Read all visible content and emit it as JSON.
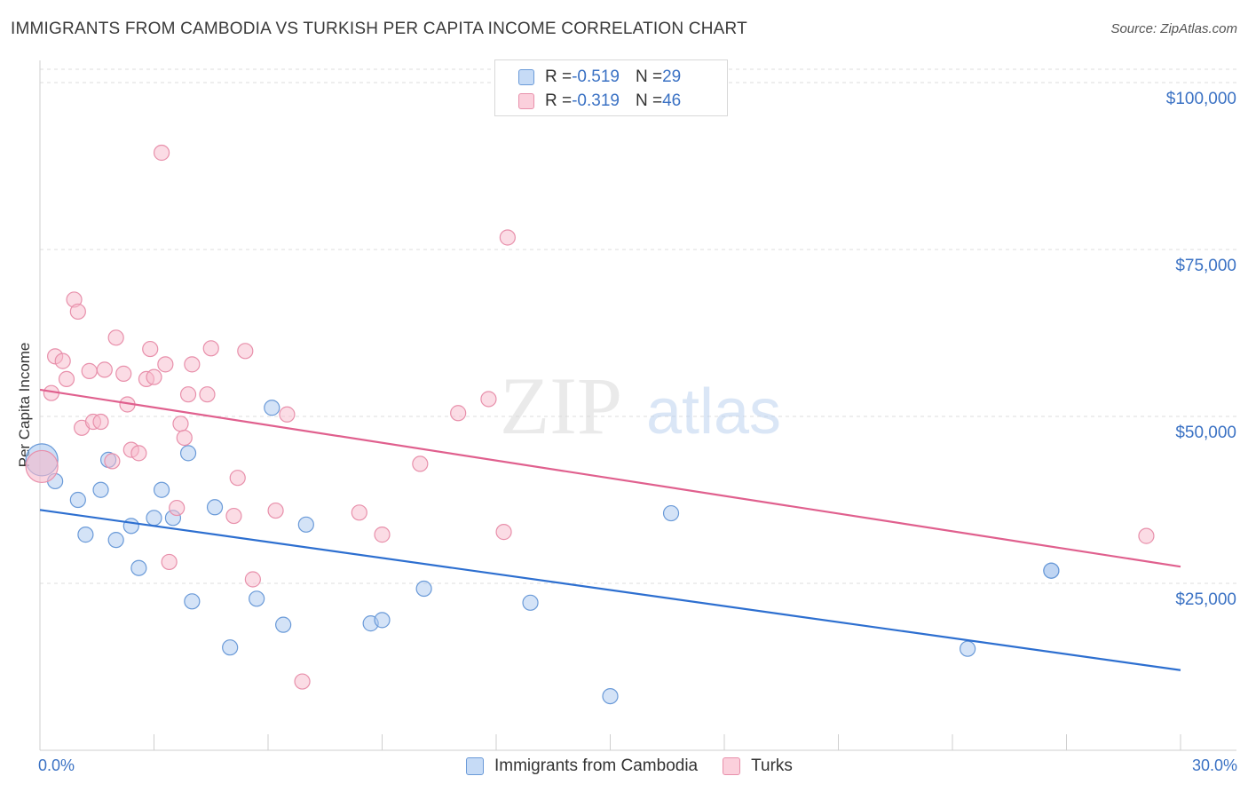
{
  "header": {
    "title": "IMMIGRANTS FROM CAMBODIA VS TURKISH PER CAPITA INCOME CORRELATION CHART",
    "source": "Source: ZipAtlas.com"
  },
  "watermark": {
    "zip": "ZIP",
    "atlas": "atlas"
  },
  "colors": {
    "cambodia_fill": "#a9c8f0",
    "cambodia_stroke": "#6a9ad8",
    "cambodia_line": "#2d6fd0",
    "turks_fill": "#f7b9cb",
    "turks_stroke": "#e890ab",
    "turks_line": "#e0608e",
    "tick_text": "#3b72c4"
  },
  "legend_top": {
    "rows": [
      {
        "r_label": "R = ",
        "r_value": "-0.519",
        "n_label": "N = ",
        "n_value": "29"
      },
      {
        "r_label": "R = ",
        "r_value": "-0.319",
        "n_label": "N = ",
        "n_value": "46"
      }
    ]
  },
  "legend_bottom": {
    "items": [
      {
        "label": "Immigrants from Cambodia"
      },
      {
        "label": "Turks"
      }
    ]
  },
  "chart_data": {
    "type": "scatter",
    "title": "IMMIGRANTS FROM CAMBODIA VS TURKISH PER CAPITA INCOME CORRELATION CHART",
    "xlabel": "",
    "ylabel": "Per Capita Income",
    "xlim": [
      0,
      30
    ],
    "ylim": [
      0,
      102000
    ],
    "x_tick_labels": [
      "0.0%",
      "30.0%"
    ],
    "y_ticks": [
      25000,
      50000,
      75000,
      100000
    ],
    "y_tick_labels": [
      "$25,000",
      "$50,000",
      "$75,000",
      "$100,000"
    ],
    "grid": true,
    "legend_position": "top-center",
    "series": [
      {
        "name": "Immigrants from Cambodia",
        "r": -0.519,
        "n": 29,
        "trend": [
          [
            0,
            36000
          ],
          [
            30,
            12000
          ]
        ],
        "points": [
          [
            0.05,
            43500
          ],
          [
            0.4,
            40300
          ],
          [
            1.0,
            37500
          ],
          [
            1.2,
            32300
          ],
          [
            1.6,
            39000
          ],
          [
            1.8,
            43500
          ],
          [
            2.0,
            31500
          ],
          [
            2.4,
            33600
          ],
          [
            2.6,
            27300
          ],
          [
            3.0,
            34800
          ],
          [
            3.2,
            39000
          ],
          [
            3.5,
            34800
          ],
          [
            3.9,
            44500
          ],
          [
            4.0,
            22300
          ],
          [
            4.6,
            36400
          ],
          [
            5.0,
            15400
          ],
          [
            5.7,
            22700
          ],
          [
            6.1,
            51300
          ],
          [
            6.4,
            18800
          ],
          [
            7.0,
            33800
          ],
          [
            8.7,
            19000
          ],
          [
            9.0,
            19500
          ],
          [
            10.1,
            24200
          ],
          [
            12.9,
            22100
          ],
          [
            15.0,
            8100
          ],
          [
            16.6,
            35500
          ],
          [
            24.4,
            15200
          ],
          [
            26.6,
            26900
          ],
          [
            26.6,
            26900
          ]
        ]
      },
      {
        "name": "Turks",
        "r": -0.319,
        "n": 46,
        "trend": [
          [
            0,
            54000
          ],
          [
            30,
            27500
          ]
        ],
        "points": [
          [
            0.05,
            42500
          ],
          [
            0.3,
            53500
          ],
          [
            0.4,
            59000
          ],
          [
            0.6,
            58300
          ],
          [
            0.7,
            55600
          ],
          [
            0.9,
            67500
          ],
          [
            1.0,
            65700
          ],
          [
            1.1,
            48300
          ],
          [
            1.3,
            56800
          ],
          [
            1.4,
            49200
          ],
          [
            1.6,
            49200
          ],
          [
            1.7,
            57000
          ],
          [
            1.9,
            43300
          ],
          [
            2.0,
            61800
          ],
          [
            2.2,
            56400
          ],
          [
            2.3,
            51800
          ],
          [
            2.4,
            45000
          ],
          [
            2.6,
            44500
          ],
          [
            2.8,
            55600
          ],
          [
            2.9,
            60100
          ],
          [
            3.0,
            55900
          ],
          [
            3.2,
            89500
          ],
          [
            3.3,
            57800
          ],
          [
            3.4,
            28200
          ],
          [
            3.6,
            36300
          ],
          [
            3.7,
            48900
          ],
          [
            3.8,
            46800
          ],
          [
            3.9,
            53300
          ],
          [
            4.0,
            57800
          ],
          [
            4.4,
            53300
          ],
          [
            4.5,
            60200
          ],
          [
            5.1,
            35100
          ],
          [
            5.2,
            40800
          ],
          [
            5.4,
            59800
          ],
          [
            5.6,
            25600
          ],
          [
            6.2,
            35900
          ],
          [
            6.5,
            50300
          ],
          [
            6.9,
            10300
          ],
          [
            8.4,
            35600
          ],
          [
            9.0,
            32300
          ],
          [
            10.0,
            42900
          ],
          [
            11.0,
            50500
          ],
          [
            11.8,
            52600
          ],
          [
            12.2,
            32700
          ],
          [
            12.3,
            76800
          ],
          [
            29.1,
            32100
          ]
        ]
      }
    ]
  }
}
